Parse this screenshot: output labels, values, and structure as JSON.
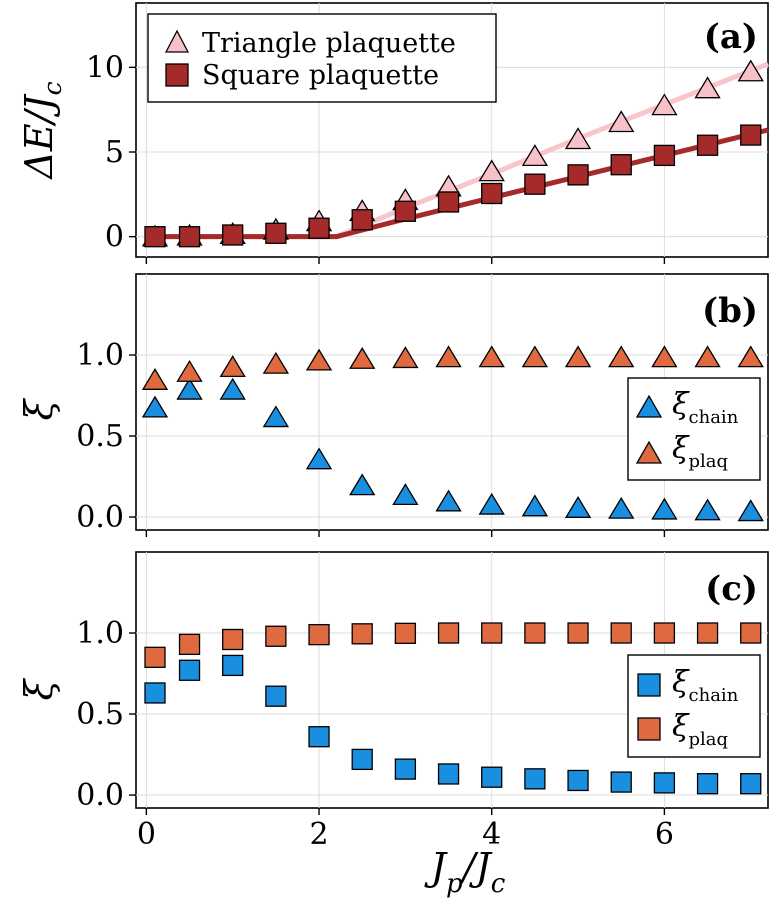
{
  "chart_data": [
    {
      "type": "scatter",
      "panel": "(a)",
      "ylabel": "ΔE/Jc",
      "xlim": [
        -0.12,
        7.2
      ],
      "ylim": [
        -1.2,
        13.8
      ],
      "yticks": [
        0,
        5,
        10
      ],
      "ytick_labels": [
        "0",
        "5",
        "10"
      ],
      "grid": true,
      "legend": "top-left",
      "series": [
        {
          "name": "Triangle plaquette",
          "marker": "triangle",
          "color": "#f8c0c8",
          "x": [
            0.1,
            0.5,
            1.0,
            1.5,
            2.0,
            2.5,
            3.0,
            3.5,
            4.0,
            4.5,
            5.0,
            5.5,
            6.0,
            6.5,
            7.0
          ],
          "y": [
            0.05,
            0.1,
            0.2,
            0.45,
            0.95,
            1.55,
            2.2,
            3.0,
            3.9,
            4.8,
            5.8,
            6.8,
            7.8,
            8.8,
            9.8
          ]
        },
        {
          "name": "Square plaquette",
          "marker": "square",
          "color": "#a52a2a",
          "x": [
            0.1,
            0.5,
            1.0,
            1.5,
            2.0,
            2.5,
            3.0,
            3.5,
            4.0,
            4.5,
            5.0,
            5.5,
            6.0,
            6.5,
            7.0
          ],
          "y": [
            0.0,
            0.0,
            0.1,
            0.2,
            0.5,
            1.0,
            1.5,
            2.05,
            2.55,
            3.1,
            3.65,
            4.25,
            4.8,
            5.4,
            6.0
          ]
        }
      ],
      "lines": [
        {
          "color": "#f9c5cb",
          "x": [
            0,
            1.0,
            2.0,
            2.2,
            3.0,
            4.0,
            5.0,
            6.0,
            7.0,
            7.2
          ],
          "y": [
            0,
            0,
            0,
            0,
            1.7,
            3.7,
            5.8,
            7.8,
            9.8,
            10.2
          ]
        },
        {
          "color": "#a52a2a",
          "x": [
            0,
            1.0,
            2.0,
            2.2,
            3.0,
            4.0,
            5.0,
            6.0,
            7.0,
            7.2
          ],
          "y": [
            0,
            0,
            0,
            0,
            1.05,
            2.3,
            3.55,
            4.8,
            6.05,
            6.3
          ]
        }
      ]
    },
    {
      "type": "scatter",
      "panel": "(b)",
      "ylabel": "ξ",
      "xlim": [
        -0.12,
        7.2
      ],
      "ylim": [
        -0.08,
        1.5
      ],
      "yticks": [
        0.0,
        0.5,
        1.0
      ],
      "ytick_labels": [
        "0.0",
        "0.5",
        "1.0"
      ],
      "grid": true,
      "legend": "right",
      "series": [
        {
          "name": "ξ_chain",
          "marker": "triangle",
          "color": "#1a8fe0",
          "x": [
            0.1,
            0.5,
            1.0,
            1.5,
            2.0,
            2.5,
            3.0,
            3.5,
            4.0,
            4.5,
            5.0,
            5.5,
            6.0,
            6.5,
            7.0
          ],
          "y": [
            0.68,
            0.79,
            0.79,
            0.62,
            0.36,
            0.2,
            0.14,
            0.1,
            0.08,
            0.07,
            0.06,
            0.055,
            0.05,
            0.045,
            0.04
          ]
        },
        {
          "name": "ξ_plaq",
          "marker": "triangle",
          "color": "#e06a40",
          "x": [
            0.1,
            0.5,
            1.0,
            1.5,
            2.0,
            2.5,
            3.0,
            3.5,
            4.0,
            4.5,
            5.0,
            5.5,
            6.0,
            6.5,
            7.0
          ],
          "y": [
            0.85,
            0.9,
            0.93,
            0.95,
            0.97,
            0.98,
            0.985,
            0.99,
            0.99,
            0.99,
            0.99,
            0.99,
            0.99,
            0.99,
            0.99
          ]
        }
      ]
    },
    {
      "type": "scatter",
      "panel": "(c)",
      "xlabel": "Jp/Jc",
      "ylabel": "ξ",
      "xlim": [
        -0.12,
        7.2
      ],
      "ylim": [
        -0.08,
        1.5
      ],
      "xticks": [
        0,
        2,
        4,
        6
      ],
      "xtick_labels": [
        "0",
        "2",
        "4",
        "6"
      ],
      "yticks": [
        0.0,
        0.5,
        1.0
      ],
      "ytick_labels": [
        "0.0",
        "0.5",
        "1.0"
      ],
      "grid": true,
      "legend": "right",
      "series": [
        {
          "name": "ξ_chain",
          "marker": "square",
          "color": "#1a8fe0",
          "x": [
            0.1,
            0.5,
            1.0,
            1.5,
            2.0,
            2.5,
            3.0,
            3.5,
            4.0,
            4.5,
            5.0,
            5.5,
            6.0,
            6.5,
            7.0
          ],
          "y": [
            0.63,
            0.77,
            0.8,
            0.61,
            0.36,
            0.22,
            0.16,
            0.13,
            0.11,
            0.1,
            0.09,
            0.08,
            0.075,
            0.07,
            0.07
          ]
        },
        {
          "name": "ξ_plaq",
          "marker": "square",
          "color": "#e06a40",
          "x": [
            0.1,
            0.5,
            1.0,
            1.5,
            2.0,
            2.5,
            3.0,
            3.5,
            4.0,
            4.5,
            5.0,
            5.5,
            6.0,
            6.5,
            7.0
          ],
          "y": [
            0.85,
            0.93,
            0.96,
            0.98,
            0.99,
            0.995,
            0.998,
            1.0,
            1.0,
            1.0,
            1.0,
            1.0,
            1.0,
            1.0,
            1.0
          ]
        }
      ]
    }
  ],
  "labels": {
    "panel_a": "(a)",
    "panel_b": "(b)",
    "panel_c": "(c)",
    "legend_a_1": "Triangle plaquette",
    "legend_a_2": "Square plaquette",
    "xi": "ξ",
    "chain": "chain",
    "plaq": "plaq",
    "ylabel_a_delta": "ΔE",
    "ylabel_a_rest": "/J",
    "sub_c": "c",
    "sub_p": "p",
    "xlabel_J": "J",
    "xlabel_rest": "/J"
  }
}
